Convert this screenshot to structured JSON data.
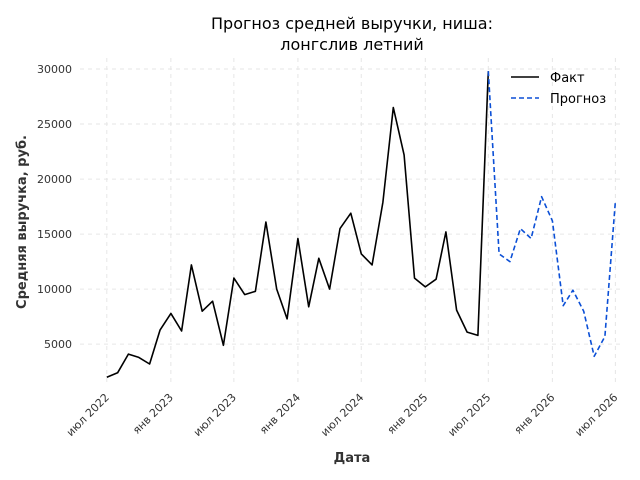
{
  "chart_data": {
    "type": "line",
    "title_line1": "Прогноз средней выручки, ниша:",
    "title_line2": "лонгслив летний",
    "xlabel": "Дата",
    "ylabel": "Средняя выручка, руб.",
    "ylim": [
      1200,
      31000
    ],
    "xlim": [
      "2022-04-15",
      "2026-07-20"
    ],
    "y_ticks": [
      5000,
      10000,
      15000,
      20000,
      25000,
      30000
    ],
    "x_ticks": [
      {
        "date": "2022-07-01",
        "label": "июл 2022"
      },
      {
        "date": "2023-01-01",
        "label": "янв 2023"
      },
      {
        "date": "2023-07-01",
        "label": "июл 2023"
      },
      {
        "date": "2024-01-01",
        "label": "янв 2024"
      },
      {
        "date": "2024-07-01",
        "label": "июл 2024"
      },
      {
        "date": "2025-01-01",
        "label": "янв 2025"
      },
      {
        "date": "2025-07-01",
        "label": "июл 2025"
      },
      {
        "date": "2026-01-01",
        "label": "янв 2026"
      },
      {
        "date": "2026-07-01",
        "label": "июл 2026"
      }
    ],
    "grid": true,
    "legend_position": "top-right",
    "series": [
      {
        "name": "Факт",
        "color": "#000000",
        "style": "solid",
        "x": [
          "2022-07-01",
          "2022-08-01",
          "2022-09-01",
          "2022-10-01",
          "2022-11-01",
          "2022-12-01",
          "2023-01-01",
          "2023-02-01",
          "2023-03-01",
          "2023-04-01",
          "2023-05-01",
          "2023-06-01",
          "2023-07-01",
          "2023-08-01",
          "2023-09-01",
          "2023-10-01",
          "2023-11-01",
          "2023-12-01",
          "2024-01-01",
          "2024-02-01",
          "2024-03-01",
          "2024-04-01",
          "2024-05-01",
          "2024-06-01",
          "2024-07-01",
          "2024-08-01",
          "2024-09-01",
          "2024-10-01",
          "2024-11-01",
          "2024-12-01",
          "2025-01-01",
          "2025-02-01",
          "2025-03-01",
          "2025-04-01",
          "2025-05-01",
          "2025-06-01",
          "2025-07-01"
        ],
        "y": [
          2000,
          2400,
          4100,
          3800,
          3200,
          6300,
          7800,
          6200,
          12200,
          8000,
          8900,
          4900,
          11000,
          9500,
          9800,
          16100,
          10000,
          7300,
          14600,
          8400,
          12800,
          10000,
          15500,
          16900,
          13200,
          12200,
          17900,
          26500,
          22200,
          11000,
          10200,
          10900,
          15200,
          8100,
          6100,
          5800,
          29800
        ]
      },
      {
        "name": "Прогноз",
        "color": "#0b4fd6",
        "style": "dashed",
        "x": [
          "2025-07-01",
          "2025-08-01",
          "2025-09-01",
          "2025-10-01",
          "2025-11-01",
          "2025-12-01",
          "2026-01-01",
          "2026-02-01",
          "2026-03-01",
          "2026-04-01",
          "2026-05-01",
          "2026-06-01",
          "2026-07-01"
        ],
        "y": [
          29800,
          13200,
          12500,
          15500,
          14600,
          18400,
          16200,
          8500,
          9900,
          8000,
          3900,
          5700,
          18000
        ]
      }
    ]
  }
}
